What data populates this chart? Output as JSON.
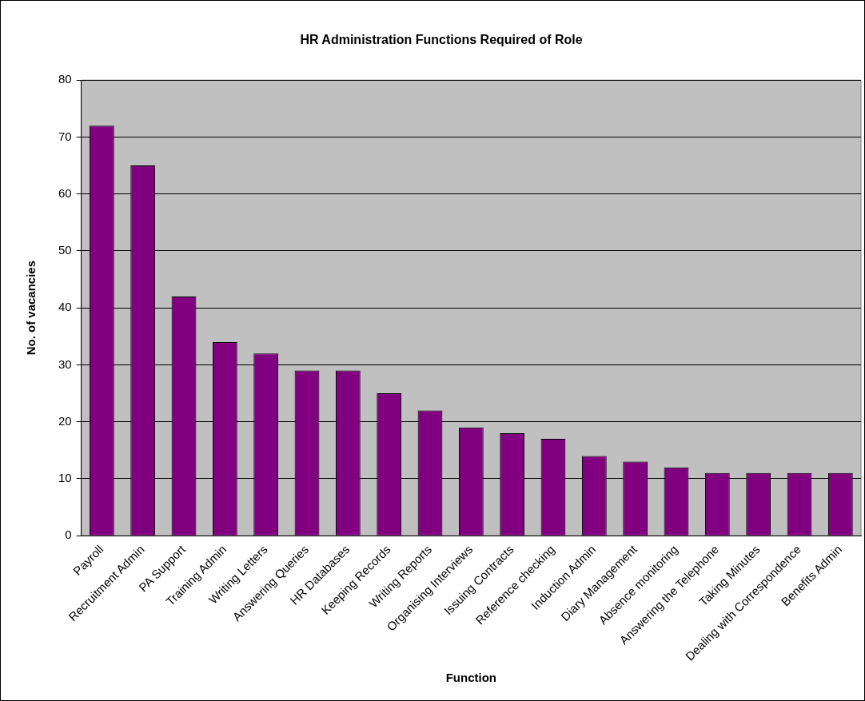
{
  "chart_data": {
    "type": "bar",
    "title": "HR Administration Functions Required of Role",
    "xlabel": "Function",
    "ylabel": "No. of vacancies",
    "categories": [
      "Payroll",
      "Recruitment Admin",
      "PA Support",
      "Training Admin",
      "Writing Letters",
      "Answering Queries",
      "HR Databases",
      "Keeping Records",
      "Writing Reports",
      "Organising Interviews",
      "Issuing Contracts",
      "Reference checking",
      "Induction Admin",
      "Diary Management",
      "Absence monitoring",
      "Answering the Telephone",
      "Taking Minutes",
      "Dealing with Correspondence",
      "Benefits Admin"
    ],
    "values": [
      72,
      65,
      42,
      34,
      32,
      29,
      29,
      25,
      22,
      19,
      18,
      17,
      14,
      13,
      12,
      11,
      11,
      11,
      11
    ],
    "color": "#800080",
    "ylim": [
      0,
      80
    ],
    "yticks": [
      0,
      10,
      20,
      30,
      40,
      50,
      60,
      70,
      80
    ],
    "grid": "y",
    "legend": false
  }
}
